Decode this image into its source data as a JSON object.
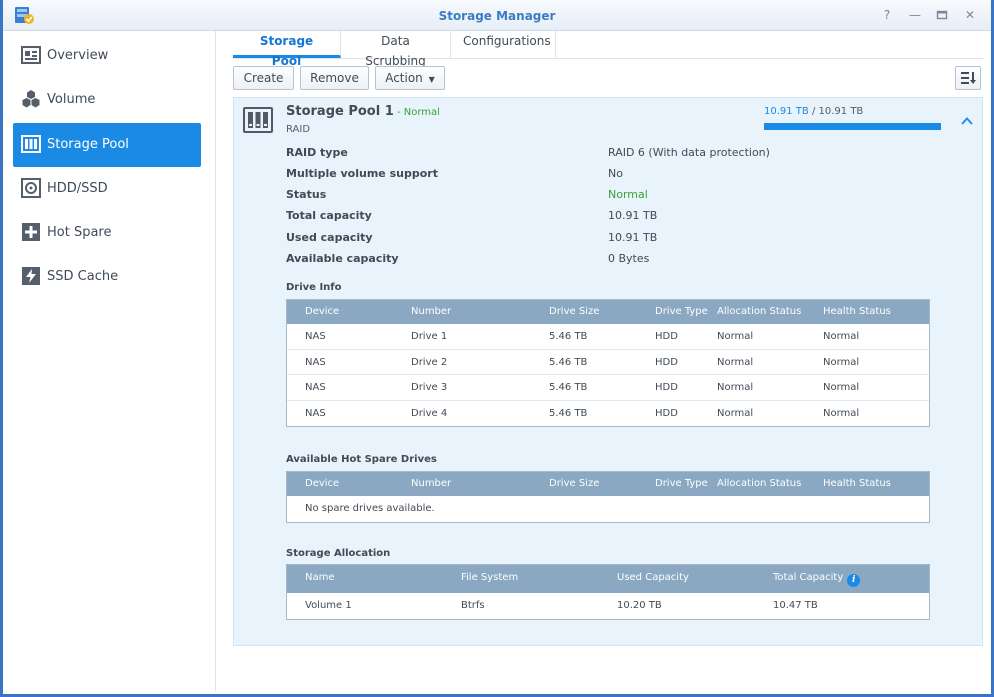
{
  "window": {
    "title": "Storage Manager"
  },
  "sidebar": {
    "items": [
      {
        "label": "Overview",
        "icon": "overview-icon"
      },
      {
        "label": "Volume",
        "icon": "volume-icon"
      },
      {
        "label": "Storage Pool",
        "icon": "storage-pool-icon",
        "active": true
      },
      {
        "label": "HDD/SSD",
        "icon": "hdd-icon"
      },
      {
        "label": "Hot Spare",
        "icon": "hot-spare-icon"
      },
      {
        "label": "SSD Cache",
        "icon": "ssd-cache-icon"
      }
    ]
  },
  "tabs": [
    {
      "label": "Storage Pool",
      "active": true
    },
    {
      "label": "Data Scrubbing"
    },
    {
      "label": "Configurations"
    }
  ],
  "toolbar": {
    "create": "Create",
    "remove": "Remove",
    "action": "Action"
  },
  "pool": {
    "name": "Storage Pool 1",
    "status_sep": " - ",
    "status": "Normal",
    "subtitle": "RAID",
    "capacity_used": "10.91 TB",
    "capacity_sep": " / ",
    "capacity_total": "10.91 TB",
    "usage_fraction": 1.0,
    "properties": [
      {
        "label": "RAID type",
        "value": "RAID 6 (With data protection)"
      },
      {
        "label": "Multiple volume support",
        "value": "No"
      },
      {
        "label": "Status",
        "value": "Normal"
      },
      {
        "label": "Total capacity",
        "value": "10.91 TB"
      },
      {
        "label": "Used capacity",
        "value": "10.91 TB"
      },
      {
        "label": "Available capacity",
        "value": "0 Bytes"
      }
    ]
  },
  "drive_info": {
    "title": "Drive Info",
    "columns": [
      "Device",
      "Number",
      "Drive Size",
      "Drive Type",
      "Allocation Status",
      "Health Status"
    ],
    "rows": [
      [
        "NAS",
        "Drive 1",
        "5.46 TB",
        "HDD",
        "Normal",
        "Normal"
      ],
      [
        "NAS",
        "Drive 2",
        "5.46 TB",
        "HDD",
        "Normal",
        "Normal"
      ],
      [
        "NAS",
        "Drive 3",
        "5.46 TB",
        "HDD",
        "Normal",
        "Normal"
      ],
      [
        "NAS",
        "Drive 4",
        "5.46 TB",
        "HDD",
        "Normal",
        "Normal"
      ]
    ]
  },
  "hot_spare": {
    "title": "Available Hot Spare Drives",
    "columns": [
      "Device",
      "Number",
      "Drive Size",
      "Drive Type",
      "Allocation Status",
      "Health Status"
    ],
    "empty_text": "No spare drives available."
  },
  "allocation": {
    "title": "Storage Allocation",
    "columns": [
      "Name",
      "File System",
      "Used Capacity",
      "Total Capacity"
    ],
    "rows": [
      [
        "Volume 1",
        "Btrfs",
        "10.20 TB",
        "10.47 TB"
      ]
    ]
  },
  "colors": {
    "accent": "#1b8ae5",
    "normal": "#3aa33a",
    "table_header": "#8aa8c1",
    "panel_bg": "#e8f3fb"
  }
}
